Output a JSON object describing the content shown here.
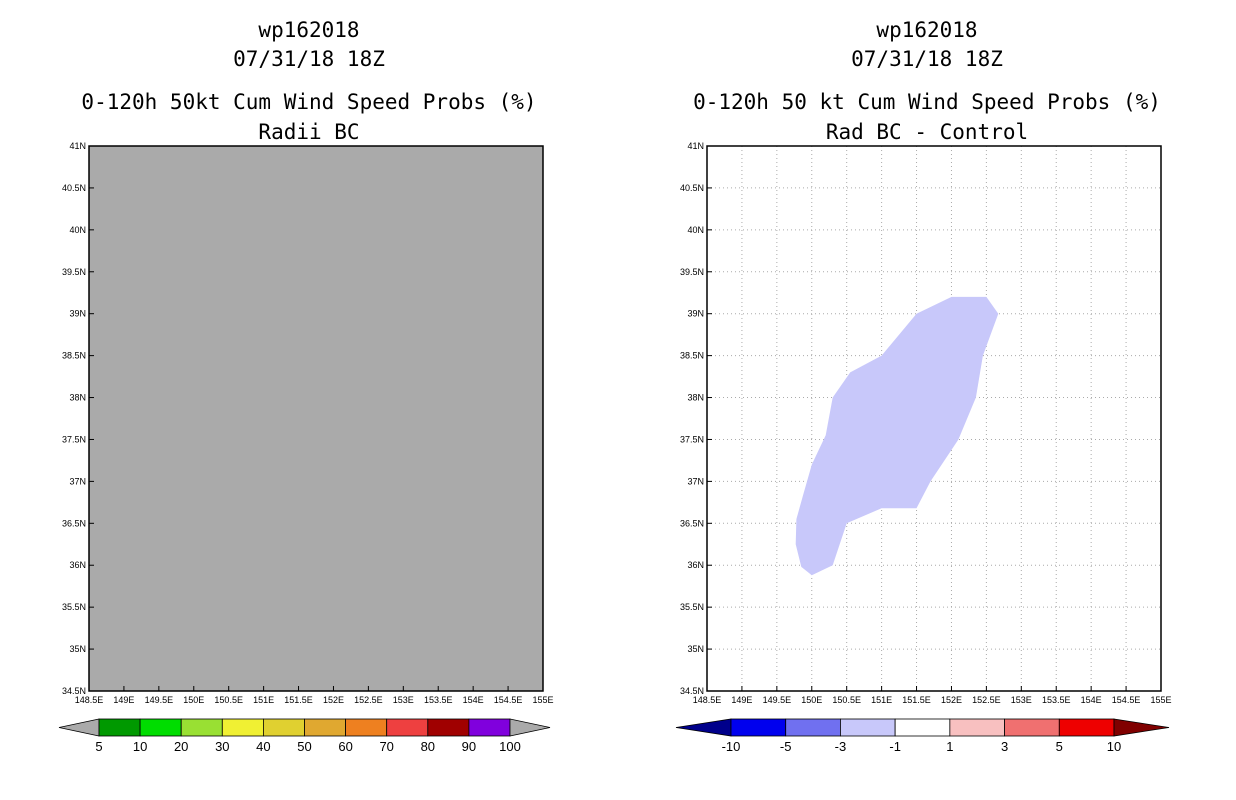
{
  "chart_data": [
    {
      "type": "heatmap",
      "storm_id": "wp162018",
      "datetime": "07/31/18 18Z",
      "title": "0-120h 50kt Cum Wind Speed Probs (%)",
      "subtitle": "Radii BC",
      "xlim": [
        148.5,
        155
      ],
      "ylim": [
        34.5,
        41
      ],
      "grid": false,
      "x_ticks": [
        "148.5E",
        "149E",
        "149.5E",
        "150E",
        "150.5E",
        "151E",
        "151.5E",
        "152E",
        "152.5E",
        "153E",
        "153.5E",
        "154E",
        "154.5E",
        "155E"
      ],
      "y_ticks": [
        "34.5N",
        "35N",
        "35.5N",
        "36N",
        "36.5N",
        "37N",
        "37.5N",
        "38N",
        "38.5N",
        "39N",
        "39.5N",
        "40N",
        "40.5N",
        "41N"
      ],
      "field": "uniform, all values below 5% (grey fill)",
      "fill_color": "#aaaaaa",
      "colorbar": {
        "labels": [
          "5",
          "10",
          "20",
          "30",
          "40",
          "50",
          "60",
          "70",
          "80",
          "90",
          "100"
        ],
        "colors": [
          "#aaaaaa",
          "#009900",
          "#00dd00",
          "#99e033",
          "#f0f033",
          "#e0d030",
          "#e0a830",
          "#ee8020",
          "#ee4040",
          "#a00000",
          "#8000dd",
          "#aaaaaa"
        ]
      }
    },
    {
      "type": "heatmap",
      "storm_id": "wp162018",
      "datetime": "07/31/18 18Z",
      "title": "0-120h 50 kt Cum Wind Speed Probs (%)",
      "subtitle": "Rad BC - Control",
      "xlim": [
        148.5,
        155
      ],
      "ylim": [
        34.5,
        41
      ],
      "grid": true,
      "x_ticks": [
        "148.5E",
        "149E",
        "149.5E",
        "150E",
        "150.5E",
        "151E",
        "151.5E",
        "152E",
        "152.5E",
        "153E",
        "153.5E",
        "154E",
        "154.5E",
        "155E"
      ],
      "y_ticks": [
        "34.5N",
        "35N",
        "35.5N",
        "36N",
        "36.5N",
        "37N",
        "37.5N",
        "38N",
        "38.5N",
        "39N",
        "39.5N",
        "40N",
        "40.5N",
        "41N"
      ],
      "contour": {
        "range": "-3 to -1",
        "color": "#c8c8fa",
        "polygon_lonlat": [
          [
            150.0,
            35.88
          ],
          [
            149.85,
            35.98
          ],
          [
            149.77,
            36.25
          ],
          [
            149.78,
            36.55
          ],
          [
            149.88,
            36.85
          ],
          [
            150.0,
            37.2
          ],
          [
            150.2,
            37.55
          ],
          [
            150.3,
            38.0
          ],
          [
            150.55,
            38.3
          ],
          [
            151.0,
            38.5
          ],
          [
            151.5,
            39.0
          ],
          [
            152.0,
            39.2
          ],
          [
            152.5,
            39.2
          ],
          [
            152.67,
            39.0
          ],
          [
            152.45,
            38.5
          ],
          [
            152.35,
            38.0
          ],
          [
            152.1,
            37.5
          ],
          [
            151.7,
            37.0
          ],
          [
            151.5,
            36.68
          ],
          [
            151.0,
            36.68
          ],
          [
            150.5,
            36.5
          ],
          [
            150.3,
            36.0
          ]
        ]
      },
      "colorbar": {
        "labels": [
          "-10",
          "-5",
          "-3",
          "-1",
          "1",
          "3",
          "5",
          "10"
        ],
        "colors": [
          "#00008b",
          "#0000ee",
          "#7070f0",
          "#c8c8fa",
          "#ffffff",
          "#f8c0c0",
          "#f07070",
          "#ee0000",
          "#800000"
        ]
      }
    }
  ]
}
